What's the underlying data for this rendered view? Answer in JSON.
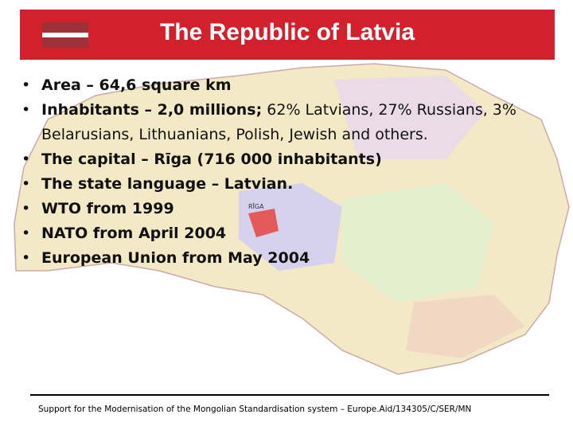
{
  "header": {
    "title": "The Republic of Latvia"
  },
  "bullets": [
    {
      "bold": "Area – 64,6 square km"
    },
    {
      "bold": "Inhabitants – 2,0 millions;",
      "text": "62% Latvians, 27% Russians, 3% Belarusians, Lithuanians, Polish, Jewish and others."
    },
    {
      "bold": "The capital – Rīga (716 000 inhabitants)"
    },
    {
      "bold": "The state language – Latvian."
    },
    {
      "bold": "WTO from 1999"
    },
    {
      "bold": "NATO from April 2004"
    },
    {
      "bold": "European Union from May 2004"
    }
  ],
  "map": {
    "labels": [
      "RĪGA"
    ]
  },
  "footer": {
    "text": "Support for the Modernisation of the Mongolian Standardisation system – Europe.Aid/134305/C/SER/MN"
  }
}
